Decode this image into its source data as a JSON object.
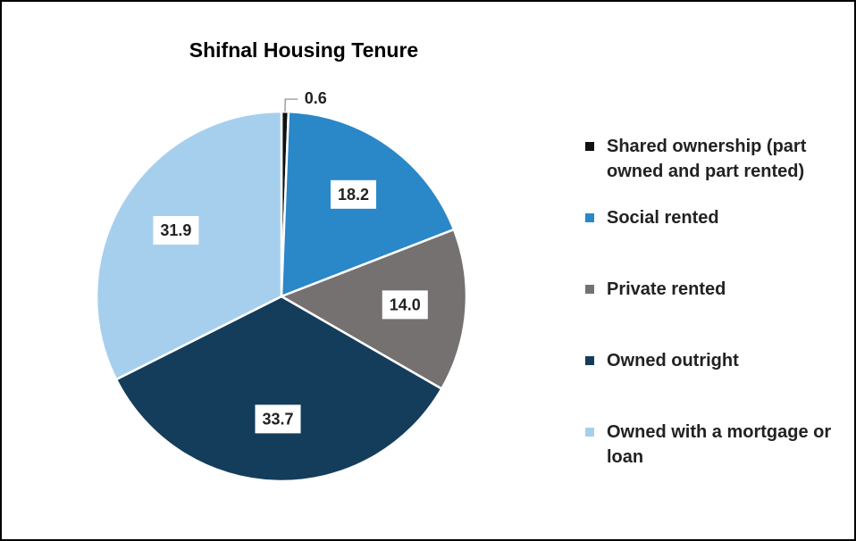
{
  "chart_data": {
    "type": "pie",
    "title": "Shifnal Housing Tenure",
    "categories": [
      "Shared ownership (part owned and part rented)",
      "Social rented",
      "Private rented",
      "Owned outright",
      "Owned with a mortgage or loan"
    ],
    "values": [
      0.6,
      18.2,
      14.0,
      33.7,
      31.9
    ],
    "value_labels": [
      "0.6",
      "18.2",
      "14.0",
      "33.7",
      "31.9"
    ],
    "colors": [
      "#111111",
      "#2a87c8",
      "#767171",
      "#143d5c",
      "#a6cfee"
    ]
  }
}
